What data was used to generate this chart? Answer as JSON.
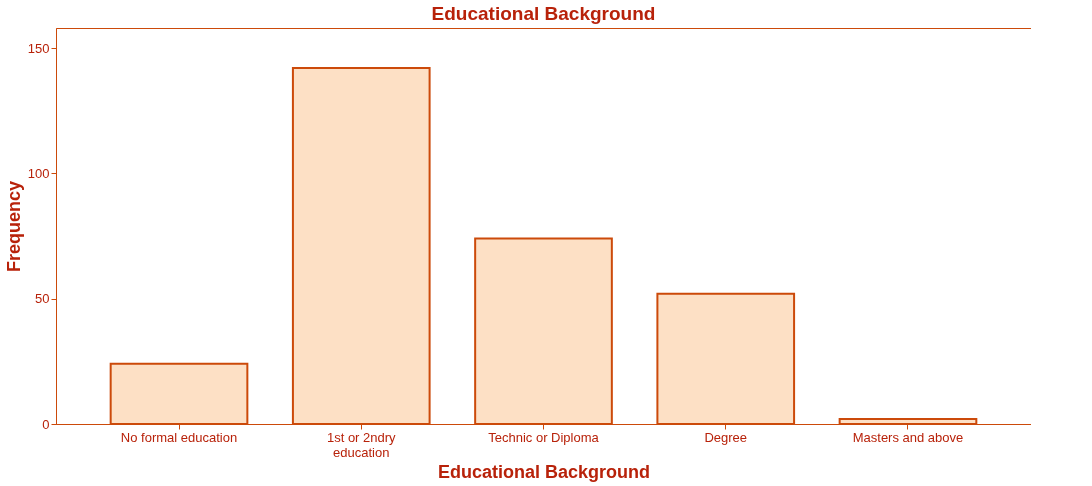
{
  "chart_data": {
    "type": "bar",
    "title": "Educational Background",
    "xlabel": "Educational Background",
    "ylabel": "Frequency",
    "categories": [
      "No formal education",
      "1st or 2ndry\neducation",
      "Technic or Diploma",
      "Degree",
      "Masters and above"
    ],
    "values": [
      24,
      142,
      74,
      52,
      2
    ],
    "color": "#fde0c5",
    "ylim": [
      0,
      158
    ],
    "yticks": [
      0,
      50,
      100,
      150
    ],
    "grid": false
  }
}
